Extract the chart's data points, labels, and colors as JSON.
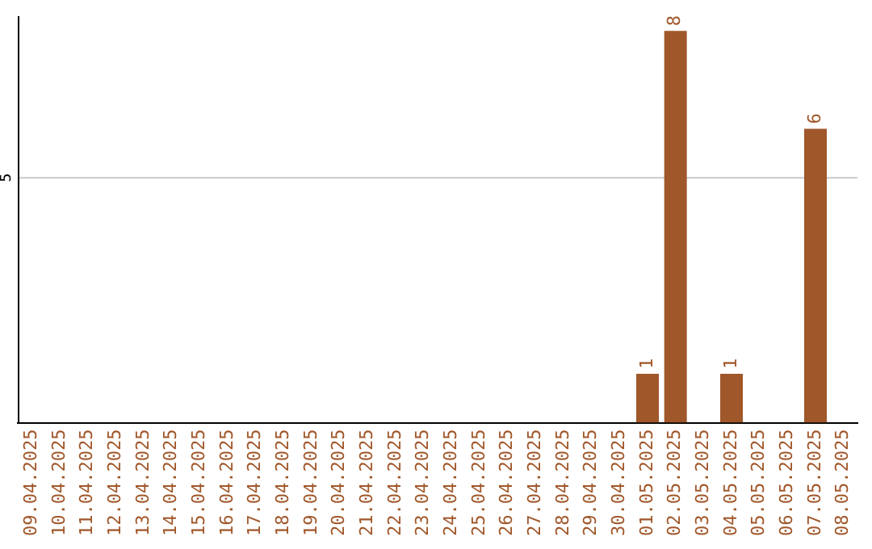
{
  "chart_data": {
    "type": "bar",
    "categories": [
      "09.04.2025",
      "10.04.2025",
      "11.04.2025",
      "12.04.2025",
      "13.04.2025",
      "14.04.2025",
      "15.04.2025",
      "16.04.2025",
      "17.04.2025",
      "18.04.2025",
      "19.04.2025",
      "20.04.2025",
      "21.04.2025",
      "22.04.2025",
      "23.04.2025",
      "24.04.2025",
      "25.04.2025",
      "26.04.2025",
      "27.04.2025",
      "28.04.2025",
      "29.04.2025",
      "30.04.2025",
      "01.05.2025",
      "02.05.2025",
      "03.05.2025",
      "04.05.2025",
      "05.05.2025",
      "06.05.2025",
      "07.05.2025",
      "08.05.2025"
    ],
    "values": [
      null,
      null,
      null,
      null,
      null,
      null,
      null,
      null,
      null,
      null,
      null,
      null,
      null,
      null,
      null,
      null,
      null,
      null,
      null,
      null,
      null,
      null,
      1,
      8,
      null,
      1,
      null,
      null,
      6,
      null
    ],
    "data_labels": true,
    "color": "#a0572a",
    "ylim": [
      0,
      8.3
    ],
    "ref_lines": [
      {
        "axis": "y",
        "value": 5,
        "label": "5",
        "color": "#c8c8c8"
      }
    ],
    "legend": false
  }
}
